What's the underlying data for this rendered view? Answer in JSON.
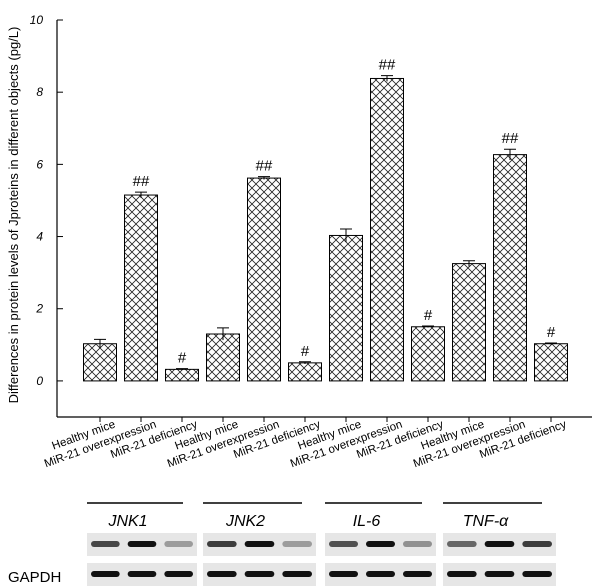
{
  "chart_data": {
    "type": "bar",
    "ylabel": "Differences in protein levels of Jproteins in different objects (pg/L)",
    "categories": [
      "Healthy mice",
      "MiR-21 overexpression",
      "MiR-21 deficiency",
      "Healthy mice",
      "MiR-21 overexpression",
      "MiR-21 deficiency",
      "Healthy mice",
      "MiR-21 overexpression",
      "MiR-21 deficiency",
      "Healthy mice",
      "MiR-21 overexpression",
      "MiR-21 deficiency"
    ],
    "values": [
      1.03,
      5.15,
      0.32,
      1.3,
      5.62,
      0.5,
      4.03,
      8.38,
      1.5,
      3.25,
      6.27,
      1.03
    ],
    "errors": [
      0.12,
      0.08,
      0.02,
      0.17,
      0.04,
      0.03,
      0.18,
      0.08,
      0.02,
      0.08,
      0.15,
      0.02
    ],
    "annotations": [
      null,
      "##",
      "#",
      null,
      "##",
      "#",
      null,
      "##",
      "#",
      null,
      "##",
      "#"
    ],
    "ylim": [
      -1,
      10
    ],
    "yticks": [
      0,
      2,
      4,
      6,
      8,
      10
    ],
    "color": "#000000"
  },
  "blot": {
    "groups": [
      "JNK1",
      "JNK2",
      "IL-6",
      "TNF-α"
    ],
    "loading_control": "GAPDH"
  }
}
